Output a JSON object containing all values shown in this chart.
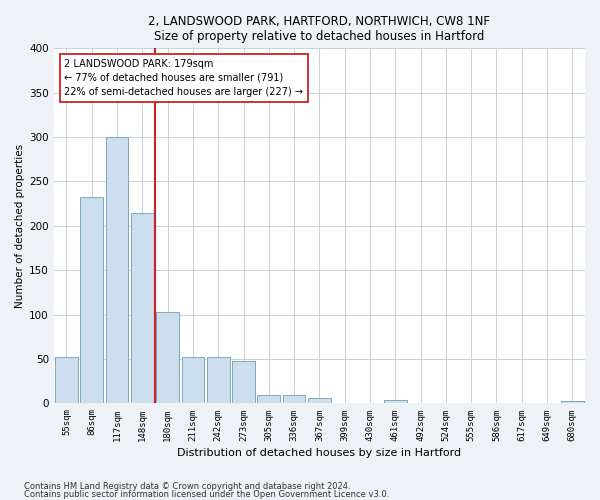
{
  "title1": "2, LANDSWOOD PARK, HARTFORD, NORTHWICH, CW8 1NF",
  "title2": "Size of property relative to detached houses in Hartford",
  "xlabel": "Distribution of detached houses by size in Hartford",
  "ylabel": "Number of detached properties",
  "bar_labels": [
    "55sqm",
    "86sqm",
    "117sqm",
    "148sqm",
    "180sqm",
    "211sqm",
    "242sqm",
    "273sqm",
    "305sqm",
    "336sqm",
    "367sqm",
    "399sqm",
    "430sqm",
    "461sqm",
    "492sqm",
    "524sqm",
    "555sqm",
    "586sqm",
    "617sqm",
    "649sqm",
    "680sqm"
  ],
  "bar_values": [
    52,
    232,
    300,
    215,
    103,
    52,
    52,
    48,
    9,
    9,
    6,
    0,
    0,
    4,
    0,
    0,
    0,
    0,
    0,
    0,
    3
  ],
  "bar_color": "#ccdded",
  "bar_edgecolor": "#7aaabb",
  "vline_color": "#cc2222",
  "annotation_text": "2 LANDSWOOD PARK: 179sqm\n← 77% of detached houses are smaller (791)\n22% of semi-detached houses are larger (227) →",
  "annotation_box_color": "white",
  "annotation_box_edgecolor": "#cc2222",
  "ylim": [
    0,
    400
  ],
  "yticks": [
    0,
    50,
    100,
    150,
    200,
    250,
    300,
    350,
    400
  ],
  "footer1": "Contains HM Land Registry data © Crown copyright and database right 2024.",
  "footer2": "Contains public sector information licensed under the Open Government Licence v3.0.",
  "bg_color": "#eef2f7",
  "plot_bg_color": "white",
  "grid_color": "#c8d0dc"
}
